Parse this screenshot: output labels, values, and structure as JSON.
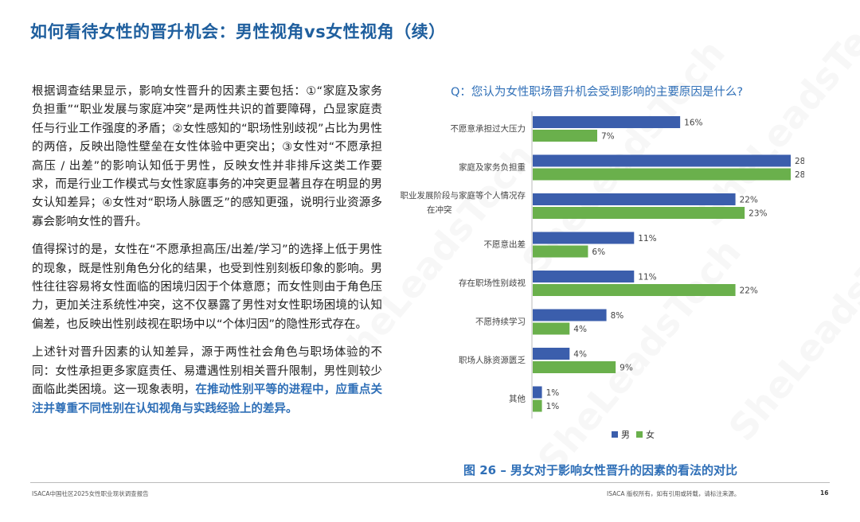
{
  "title": "如何看待女性的晋升机会：男性视角vs女性视角（续）",
  "watermark": "SheLeadsTech",
  "body": {
    "p1": "根据调查结果显示，影响女性晋升的因素主要包括：①“家庭及家务负担重”“职业发展与家庭冲突”是两性共识的首要障碍，凸显家庭责任与行业工作强度的矛盾；②女性感知的“职场性别歧视”占比为男性的两倍，反映出隐性壁垒在女性体验中更突出；③女性对“不愿承担高压 / 出差”的影响认知低于男性，反映女性并非排斥这类工作要求，而是行业工作模式与女性家庭事务的冲突更显著且存在明显的男女认知差异；④女性对“职场人脉匮乏”的感知更强，说明行业资源多寡会影响女性的晋升。",
    "p2": "值得探讨的是，女性在“不愿承担高压/出差/学习”的选择上低于男性的现象，既是性别角色分化的结果，也受到性别刻板印象的影响。男性往往容易将女性面临的困境归因于个体意愿；而女性则由于角色压力，更加关注系统性冲突，这不仅暴露了男性对女性职场困境的认知偏差，也反映出性别歧视在职场中以“个体归因”的隐性形式存在。",
    "p3_plain": "上述针对晋升因素的认知差异，源于两性社会角色与职场体验的不同：女性承担更多家庭责任、易遭遇性别相关晋升限制，男性则较少面临此类困境。这一现象表明，",
    "p3_highlight": "在推动性别平等的进程中，应重点关注并尊重不同性别在认知视角与实践经验上的差异。"
  },
  "chart_question": "Q：您认为女性职场晋升机会受到影响的主要原因是什么?",
  "chart_data": {
    "type": "bar",
    "orientation": "horizontal",
    "categories": [
      "不愿意承担过大压力",
      "家庭及家务负担重",
      "职业发展阶段与家庭等个人情况存在冲突",
      "不愿意出差",
      "存在职场性别歧视",
      "不愿持续学习",
      "职场人脉资源匮乏",
      "其他"
    ],
    "category_lines": [
      [
        "不愿意承担过大压力"
      ],
      [
        "家庭及家务负担重"
      ],
      [
        "职业发展阶段与家庭等个人情况存",
        "在冲突"
      ],
      [
        "不愿意出差"
      ],
      [
        "存在职场性别歧视"
      ],
      [
        "不愿持续学习"
      ],
      [
        "职场人脉资源匮乏"
      ],
      [
        "其他"
      ]
    ],
    "series": [
      {
        "name": "男",
        "color": "#3b5eac",
        "values": [
          16,
          28,
          22,
          11,
          11,
          8,
          4,
          1
        ]
      },
      {
        "name": "女",
        "color": "#6ab04c",
        "values": [
          7,
          28,
          23,
          6,
          22,
          4,
          9,
          1
        ]
      }
    ],
    "value_suffix": "%",
    "xlim": [
      0,
      28
    ],
    "grid": false,
    "legend_position": "bottom"
  },
  "legend": {
    "male": "男",
    "female": "女"
  },
  "caption": "图 26 – 男女对于影响女性晋升的因素的看法的对比",
  "footer": {
    "left": "ISACA中国社区2025女性职业现状调查报告",
    "right": "ISACA 版权所有，如有引用或转载，请标注来源。",
    "page": "16"
  }
}
